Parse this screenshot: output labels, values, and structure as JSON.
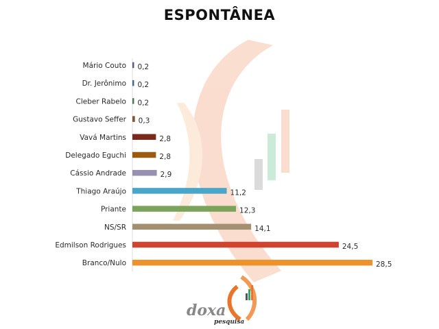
{
  "chart_data": {
    "type": "bar",
    "orientation": "horizontal",
    "title": "ESPONTÂNEA",
    "categories": [
      "Mário Couto",
      "Dr. Jerônimo",
      "Cleber Rabelo",
      "Gustavo Seffer",
      "Vavá Martins",
      "Delegado Eguchi",
      "Cássio Andrade",
      "Thiago Araújo",
      "Priante",
      "NS/SR",
      "Edmilson Rodrigues",
      "Branco/Nulo"
    ],
    "values": [
      0.2,
      0.2,
      0.2,
      0.3,
      2.8,
      2.8,
      2.9,
      11.2,
      12.3,
      14.1,
      24.5,
      28.5
    ],
    "value_labels": [
      "0,2",
      "0,2",
      "0,2",
      "0,3",
      "2,8",
      "2,8",
      "2,9",
      "11,2",
      "12,3",
      "14,1",
      "24,5",
      "28,5"
    ],
    "colors": [
      "#5b5b7d",
      "#3f6f8c",
      "#4d7a55",
      "#7a5a3a",
      "#7a2a1c",
      "#9a5a10",
      "#9890b0",
      "#4aa6c8",
      "#7ba45a",
      "#a29070",
      "#d1432e",
      "#ef922c"
    ],
    "xlim": [
      0,
      28.5
    ],
    "grid": false,
    "legend": "none"
  },
  "logo": {
    "word": "doxa",
    "sub": "pesquisa"
  }
}
